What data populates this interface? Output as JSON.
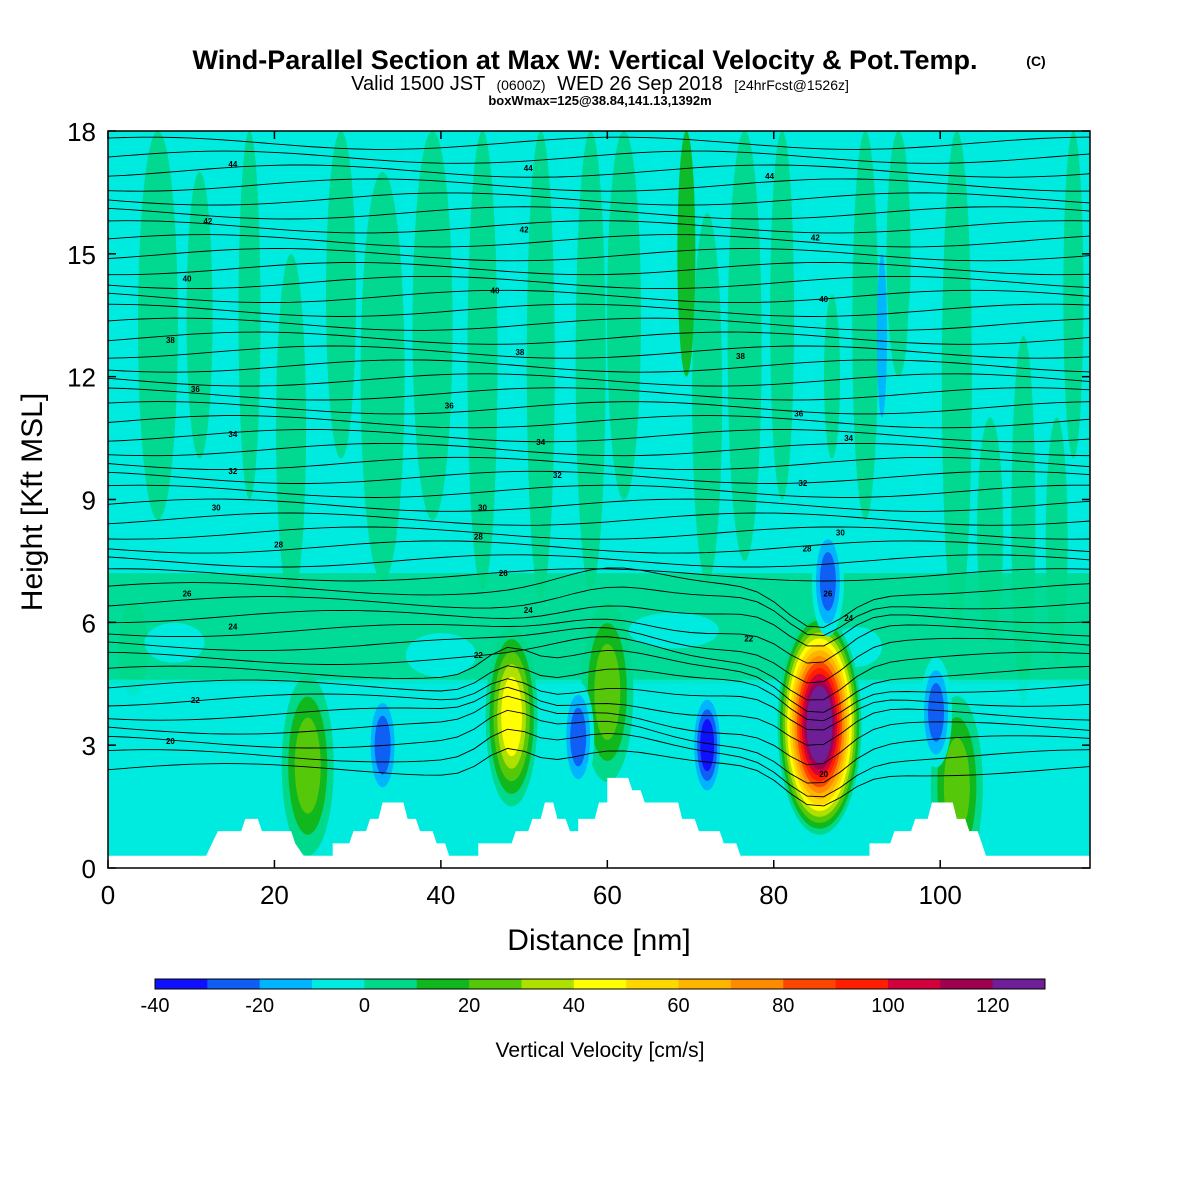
{
  "title": {
    "main": "Wind-Parallel Section at Max W: Vertical Velocity & Pot.Temp.",
    "main_suffix": "(C)",
    "valid_prefix": "Valid 1500 JST",
    "valid_utc": "(0600Z)",
    "valid_date": "WED 26 Sep 2018",
    "forecast": "[24hrFcst@1526z]",
    "box": "boxWmax=125@38.84,141.13,1392m"
  },
  "chart_data": {
    "type": "heatmap",
    "xlabel": "Distance [nm]",
    "ylabel": "Height [Kft MSL]",
    "xlim": [
      0,
      118
    ],
    "ylim": [
      0,
      18
    ],
    "xticks": [
      "0",
      "20",
      "40",
      "60",
      "80",
      "100"
    ],
    "yticks": [
      "0",
      "3",
      "6",
      "9",
      "12",
      "15",
      "18"
    ],
    "colorbar": {
      "label": "Vertical Velocity [cm/s]",
      "ticks": [
        "-40",
        "-20",
        "0",
        "20",
        "40",
        "60",
        "80",
        "100",
        "120"
      ],
      "levels": [
        -40,
        -30,
        -20,
        -10,
        0,
        10,
        20,
        30,
        40,
        50,
        60,
        70,
        80,
        90,
        100,
        110,
        120,
        130
      ],
      "colors": [
        "#1010ff",
        "#0f5ff5",
        "#00b4ff",
        "#00ebe0",
        "#00d88a",
        "#10b81d",
        "#55c80a",
        "#aee000",
        "#ffff00",
        "#ffd800",
        "#ffb400",
        "#ff8c00",
        "#ff4600",
        "#ff1e00",
        "#d2003c",
        "#a00050",
        "#6e1e96"
      ]
    },
    "vertical_velocity_features": [
      {
        "x": 24,
        "y": 2.5,
        "peak_cm_s": 30
      },
      {
        "x": 48.5,
        "y": 3.7,
        "peak_cm_s": 45
      },
      {
        "x": 60,
        "y": 4.3,
        "peak_cm_s": 30
      },
      {
        "x": 85.5,
        "y": 3.5,
        "peak_cm_s": 125
      },
      {
        "x": 102,
        "y": 2.0,
        "peak_cm_s": 25
      },
      {
        "x": 33,
        "y": 3.0,
        "peak_cm_s": -25
      },
      {
        "x": 56.5,
        "y": 3.2,
        "peak_cm_s": -30
      },
      {
        "x": 72,
        "y": 3.0,
        "peak_cm_s": -35
      },
      {
        "x": 86.5,
        "y": 7.0,
        "peak_cm_s": -30
      },
      {
        "x": 99.5,
        "y": 3.8,
        "peak_cm_s": -25
      }
    ],
    "terrain_profile": [
      {
        "x": 0,
        "h": 0.3
      },
      {
        "x": 11.8,
        "h": 0.3
      },
      {
        "x": 12.5,
        "h": 0.6
      },
      {
        "x": 13.2,
        "h": 0.9
      },
      {
        "x": 16,
        "h": 0.9
      },
      {
        "x": 16.5,
        "h": 1.2
      },
      {
        "x": 18,
        "h": 1.2
      },
      {
        "x": 18.5,
        "h": 0.9
      },
      {
        "x": 22,
        "h": 0.9
      },
      {
        "x": 22.5,
        "h": 0.6
      },
      {
        "x": 23.5,
        "h": 0.3
      },
      {
        "x": 27,
        "h": 0.3
      },
      {
        "x": 27,
        "h": 0.6
      },
      {
        "x": 29,
        "h": 0.6
      },
      {
        "x": 29.5,
        "h": 0.9
      },
      {
        "x": 31,
        "h": 0.9
      },
      {
        "x": 31.5,
        "h": 1.2
      },
      {
        "x": 32.5,
        "h": 1.2
      },
      {
        "x": 33,
        "h": 1.6
      },
      {
        "x": 35.5,
        "h": 1.6
      },
      {
        "x": 36,
        "h": 1.2
      },
      {
        "x": 37,
        "h": 1.2
      },
      {
        "x": 37.5,
        "h": 0.9
      },
      {
        "x": 39,
        "h": 0.9
      },
      {
        "x": 39.5,
        "h": 0.6
      },
      {
        "x": 40.5,
        "h": 0.6
      },
      {
        "x": 41,
        "h": 0.3
      },
      {
        "x": 44.5,
        "h": 0.3
      },
      {
        "x": 44.5,
        "h": 0.6
      },
      {
        "x": 48.5,
        "h": 0.6
      },
      {
        "x": 49,
        "h": 0.9
      },
      {
        "x": 50.5,
        "h": 0.9
      },
      {
        "x": 51,
        "h": 1.2
      },
      {
        "x": 52,
        "h": 1.2
      },
      {
        "x": 52.5,
        "h": 1.6
      },
      {
        "x": 53.5,
        "h": 1.6
      },
      {
        "x": 54,
        "h": 1.2
      },
      {
        "x": 55,
        "h": 1.2
      },
      {
        "x": 55.5,
        "h": 0.9
      },
      {
        "x": 56.5,
        "h": 0.9
      },
      {
        "x": 56.5,
        "h": 1.2
      },
      {
        "x": 58.5,
        "h": 1.2
      },
      {
        "x": 59,
        "h": 1.6
      },
      {
        "x": 60,
        "h": 1.6
      },
      {
        "x": 60,
        "h": 2.2
      },
      {
        "x": 62.5,
        "h": 2.2
      },
      {
        "x": 63,
        "h": 1.9
      },
      {
        "x": 64,
        "h": 1.9
      },
      {
        "x": 64.5,
        "h": 1.6
      },
      {
        "x": 68.5,
        "h": 1.6
      },
      {
        "x": 69,
        "h": 1.2
      },
      {
        "x": 70.5,
        "h": 1.2
      },
      {
        "x": 71,
        "h": 0.9
      },
      {
        "x": 73.5,
        "h": 0.9
      },
      {
        "x": 74,
        "h": 0.6
      },
      {
        "x": 75.5,
        "h": 0.6
      },
      {
        "x": 76,
        "h": 0.3
      },
      {
        "x": 91.5,
        "h": 0.3
      },
      {
        "x": 91.5,
        "h": 0.6
      },
      {
        "x": 94,
        "h": 0.6
      },
      {
        "x": 94.5,
        "h": 0.9
      },
      {
        "x": 96.5,
        "h": 0.9
      },
      {
        "x": 97,
        "h": 1.2
      },
      {
        "x": 98.5,
        "h": 1.2
      },
      {
        "x": 99,
        "h": 1.6
      },
      {
        "x": 101.5,
        "h": 1.6
      },
      {
        "x": 102,
        "h": 1.2
      },
      {
        "x": 103,
        "h": 1.2
      },
      {
        "x": 103.5,
        "h": 0.9
      },
      {
        "x": 104.5,
        "h": 0.9
      },
      {
        "x": 105,
        "h": 0.6
      },
      {
        "x": 105.5,
        "h": 0.3
      },
      {
        "x": 118,
        "h": 0.3
      }
    ],
    "potential_temperature_labels": [
      {
        "text": "44",
        "x": 15,
        "y": 17.2
      },
      {
        "text": "44",
        "x": 50.5,
        "y": 17.1
      },
      {
        "text": "44",
        "x": 79.5,
        "y": 16.9
      },
      {
        "text": "42",
        "x": 12,
        "y": 15.8
      },
      {
        "text": "42",
        "x": 50,
        "y": 15.6
      },
      {
        "text": "42",
        "x": 85,
        "y": 15.4
      },
      {
        "text": "40",
        "x": 9.5,
        "y": 14.4
      },
      {
        "text": "40",
        "x": 46.5,
        "y": 14.1
      },
      {
        "text": "40",
        "x": 86,
        "y": 13.9
      },
      {
        "text": "38",
        "x": 7.5,
        "y": 12.9
      },
      {
        "text": "38",
        "x": 49.5,
        "y": 12.6
      },
      {
        "text": "38",
        "x": 76,
        "y": 12.5
      },
      {
        "text": "36",
        "x": 10.5,
        "y": 11.7
      },
      {
        "text": "36",
        "x": 41,
        "y": 11.3
      },
      {
        "text": "36",
        "x": 83,
        "y": 11.1
      },
      {
        "text": "34",
        "x": 15,
        "y": 10.6
      },
      {
        "text": "34",
        "x": 52,
        "y": 10.4
      },
      {
        "text": "34",
        "x": 89,
        "y": 10.5
      },
      {
        "text": "32",
        "x": 15,
        "y": 9.7
      },
      {
        "text": "32",
        "x": 54,
        "y": 9.6
      },
      {
        "text": "32",
        "x": 83.5,
        "y": 9.4
      },
      {
        "text": "30",
        "x": 13,
        "y": 8.8
      },
      {
        "text": "30",
        "x": 45,
        "y": 8.8
      },
      {
        "text": "30",
        "x": 88,
        "y": 8.2
      },
      {
        "text": "28",
        "x": 20.5,
        "y": 7.9
      },
      {
        "text": "28",
        "x": 44.5,
        "y": 8.1
      },
      {
        "text": "28",
        "x": 84,
        "y": 7.8
      },
      {
        "text": "26",
        "x": 9.5,
        "y": 6.7
      },
      {
        "text": "26",
        "x": 47.5,
        "y": 7.2
      },
      {
        "text": "26",
        "x": 86.5,
        "y": 6.7
      },
      {
        "text": "24",
        "x": 15,
        "y": 5.9
      },
      {
        "text": "24",
        "x": 50.5,
        "y": 6.3
      },
      {
        "text": "24",
        "x": 89,
        "y": 6.1
      },
      {
        "text": "22",
        "x": 44.5,
        "y": 5.2
      },
      {
        "text": "22",
        "x": 77,
        "y": 5.6
      },
      {
        "text": "22",
        "x": 10.5,
        "y": 4.1
      },
      {
        "text": "20",
        "x": 7.5,
        "y": 3.1
      },
      {
        "text": "20",
        "x": 86,
        "y": 2.3
      }
    ]
  }
}
